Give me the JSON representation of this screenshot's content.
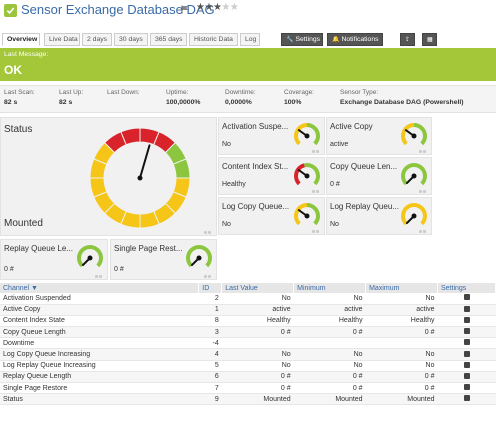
{
  "header": {
    "title": "Sensor Exchange Database DAG",
    "rating": 3,
    "rating_max": 5
  },
  "tabs": [
    {
      "label": "Overview",
      "active": true
    },
    {
      "label": "Live Data"
    },
    {
      "label": "2 days"
    },
    {
      "label": "30 days"
    },
    {
      "label": "365 days"
    },
    {
      "label": "Historic Data"
    },
    {
      "label": "Log"
    },
    {
      "label": "Settings",
      "icon": "wrench-icon"
    },
    {
      "label": "Notifications",
      "icon": "bell-icon"
    },
    {
      "label": "",
      "icon": "share-icon"
    },
    {
      "label": "",
      "icon": "document-icon"
    }
  ],
  "message": {
    "label": "Last Message:",
    "value": "OK",
    "color": "#a4c639"
  },
  "stats": [
    {
      "key": "Last Scan:",
      "value": "82 s"
    },
    {
      "key": "Last Up:",
      "value": "82 s"
    },
    {
      "key": "Last Down:",
      "value": ""
    },
    {
      "key": "Uptime:",
      "value": "100,0000%"
    },
    {
      "key": "Downtime:",
      "value": "0,0000%"
    },
    {
      "key": "Coverage:",
      "value": "100%"
    },
    {
      "key": "Sensor Type:",
      "value": "Exchange Database DAG (Powershell)"
    }
  ],
  "primary_gauge": {
    "name": "Status",
    "value": "Mounted",
    "needle_level": 0.42
  },
  "gauges": [
    {
      "name": "Activation Suspe...",
      "value": "No",
      "needle_level": 0.3
    },
    {
      "name": "Active Copy",
      "value": "active",
      "needle_level": 0.3
    },
    {
      "name": "Content Index St...",
      "value": "Healthy",
      "needle_level": 0.3
    },
    {
      "name": "Copy Queue Len...",
      "value": "0 #",
      "needle_level": 0.0
    },
    {
      "name": "Log Copy Queue...",
      "value": "No",
      "needle_level": 0.3
    },
    {
      "name": "Log Replay Queu...",
      "value": "No",
      "needle_level": 0.0
    },
    {
      "name": "Replay Queue Le...",
      "value": "0 #",
      "needle_level": 0.0
    },
    {
      "name": "Single Page Rest...",
      "value": "0 #",
      "needle_level": 0.0
    }
  ],
  "table": {
    "headers": [
      "Channel",
      "ID",
      "Last Value",
      "Minimum",
      "Maximum",
      "Settings"
    ],
    "sort_indicator": "▼",
    "rows": [
      {
        "channel": "Activation Suspended",
        "id": "2",
        "last": "No",
        "min": "No",
        "max": "No"
      },
      {
        "channel": "Active Copy",
        "id": "1",
        "last": "active",
        "min": "active",
        "max": "active"
      },
      {
        "channel": "Content Index State",
        "id": "8",
        "last": "Healthy",
        "min": "Healthy",
        "max": "Healthy"
      },
      {
        "channel": "Copy Queue Length",
        "id": "3",
        "last": "0 #",
        "min": "0 #",
        "max": "0 #"
      },
      {
        "channel": "Downtime",
        "id": "-4",
        "last": "",
        "min": "",
        "max": ""
      },
      {
        "channel": "Log Copy Queue Increasing",
        "id": "4",
        "last": "No",
        "min": "No",
        "max": "No"
      },
      {
        "channel": "Log Replay Queue Increasing",
        "id": "5",
        "last": "No",
        "min": "No",
        "max": "No"
      },
      {
        "channel": "Replay Queue Length",
        "id": "6",
        "last": "0 #",
        "min": "0 #",
        "max": "0 #"
      },
      {
        "channel": "Single Page Restore",
        "id": "7",
        "last": "0 #",
        "min": "0 #",
        "max": "0 #"
      },
      {
        "channel": "Status",
        "id": "9",
        "last": "Mounted",
        "min": "Mounted",
        "max": "Mounted"
      }
    ]
  },
  "colors": {
    "ok_green": "#a4c639",
    "gauge_yellow": "#f5c518",
    "gauge_red": "#d9232a",
    "gauge_green": "#8cc63f",
    "link_blue": "#3a6aa8"
  }
}
